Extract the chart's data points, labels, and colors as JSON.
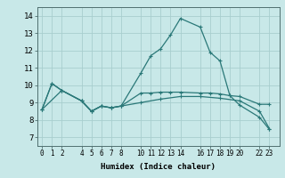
{
  "xlabel": "Humidex (Indice chaleur)",
  "bg_color": "#c8e8e8",
  "grid_color": "#a8cece",
  "line_color": "#2a7878",
  "x_ticks": [
    0,
    1,
    2,
    4,
    5,
    6,
    7,
    8,
    10,
    11,
    12,
    13,
    14,
    16,
    17,
    18,
    19,
    20,
    22,
    23
  ],
  "ylim": [
    6.5,
    14.5
  ],
  "xlim": [
    -0.5,
    24.0
  ],
  "y_ticks": [
    7,
    8,
    9,
    10,
    11,
    12,
    13,
    14
  ],
  "line1_x": [
    0,
    1,
    2,
    4,
    5,
    6,
    7,
    8,
    10,
    11,
    12,
    13,
    14,
    16,
    17,
    18,
    19,
    20,
    22,
    23
  ],
  "line1_y": [
    8.6,
    10.1,
    9.7,
    9.1,
    8.5,
    8.8,
    8.7,
    8.8,
    10.7,
    11.7,
    12.1,
    12.9,
    13.85,
    13.35,
    11.9,
    11.4,
    9.4,
    8.85,
    8.15,
    7.45
  ],
  "line2_x": [
    0,
    1,
    2,
    4,
    5,
    6,
    7,
    8,
    10,
    11,
    12,
    13,
    14,
    16,
    17,
    18,
    19,
    20,
    22,
    23
  ],
  "line2_y": [
    8.6,
    10.1,
    9.7,
    9.1,
    8.5,
    8.8,
    8.7,
    8.8,
    9.55,
    9.55,
    9.6,
    9.6,
    9.6,
    9.55,
    9.55,
    9.5,
    9.4,
    9.35,
    8.9,
    8.9
  ],
  "line3_x": [
    0,
    2,
    4,
    5,
    6,
    7,
    8,
    10,
    12,
    14,
    16,
    18,
    20,
    22,
    23
  ],
  "line3_y": [
    8.6,
    9.7,
    9.1,
    8.5,
    8.8,
    8.7,
    8.8,
    9.0,
    9.2,
    9.35,
    9.35,
    9.25,
    9.1,
    8.5,
    7.5
  ]
}
